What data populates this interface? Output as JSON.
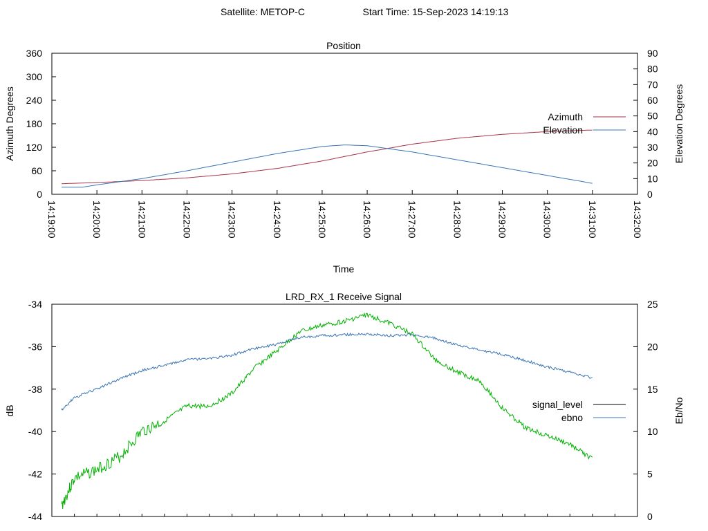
{
  "header": {
    "satellite": "Satellite: METOP-C",
    "start_time": "Start Time: 15-Sep-2023 14:19:13"
  },
  "colors": {
    "azimuth": "#a8324a",
    "elevation": "#3a74b4",
    "signal_level": "#00b000",
    "signal_legend": "#000000",
    "ebno": "#3a74b4"
  },
  "chart_data": [
    {
      "type": "line",
      "title": "Position",
      "xlabel": "Time",
      "ylabel": "Azimuth Degrees",
      "y2label": "Elevation Degrees",
      "ylim": [
        0,
        360
      ],
      "y2lim": [
        0,
        90
      ],
      "xlim": [
        "14:19:00",
        "14:32:00"
      ],
      "yticks": [
        0,
        60,
        120,
        180,
        240,
        300,
        360
      ],
      "y2ticks": [
        0,
        10,
        20,
        30,
        40,
        50,
        60,
        70,
        80,
        90
      ],
      "xticks": [
        "14:19:00",
        "14:20:00",
        "14:21:00",
        "14:22:00",
        "14:23:00",
        "14:24:00",
        "14:25:00",
        "14:26:00",
        "14:27:00",
        "14:28:00",
        "14:29:00",
        "14:30:00",
        "14:31:00",
        "14:32:00"
      ],
      "legend": "right",
      "series": [
        {
          "name": "Azimuth",
          "axis": "left",
          "x": [
            "14:19:13",
            "14:20:00",
            "14:21:00",
            "14:22:00",
            "14:23:00",
            "14:24:00",
            "14:25:00",
            "14:26:00",
            "14:27:00",
            "14:28:00",
            "14:29:00",
            "14:30:00",
            "14:31:00"
          ],
          "y": [
            27,
            30,
            35,
            42,
            52,
            66,
            85,
            108,
            128,
            143,
            153,
            160,
            164
          ]
        },
        {
          "name": "Elevation",
          "axis": "right",
          "x": [
            "14:19:13",
            "14:19:40",
            "14:20:00",
            "14:21:00",
            "14:22:00",
            "14:23:00",
            "14:24:00",
            "14:25:00",
            "14:25:30",
            "14:26:00",
            "14:27:00",
            "14:28:00",
            "14:29:00",
            "14:30:00",
            "14:31:00"
          ],
          "y": [
            4.5,
            4.5,
            6,
            10,
            15,
            20.5,
            26,
            30.5,
            31.5,
            31,
            27,
            22,
            17,
            12,
            7
          ]
        }
      ]
    },
    {
      "type": "line",
      "title": "LRD_RX_1 Receive Signal",
      "ylabel": "dB",
      "y2label": "Eb/No",
      "ylim": [
        -44,
        -34
      ],
      "y2lim": [
        0,
        25
      ],
      "xlim": [
        "14:19:00",
        "14:32:00"
      ],
      "yticks": [
        -44,
        -42,
        -40,
        -38,
        -36,
        -34
      ],
      "y2ticks": [
        0,
        5,
        10,
        15,
        20,
        25
      ],
      "legend": "right",
      "series": [
        {
          "name": "signal_level",
          "axis": "left",
          "x": [
            "14:19:13",
            "14:19:30",
            "14:20:00",
            "14:20:30",
            "14:21:00",
            "14:21:30",
            "14:22:00",
            "14:22:30",
            "14:23:00",
            "14:23:30",
            "14:24:00",
            "14:24:30",
            "14:25:00",
            "14:25:30",
            "14:26:00",
            "14:26:30",
            "14:27:00",
            "14:27:30",
            "14:28:00",
            "14:28:30",
            "14:29:00",
            "14:29:30",
            "14:30:00",
            "14:30:30",
            "14:31:00"
          ],
          "y": [
            -43.5,
            -42.2,
            -41.8,
            -41.2,
            -40.0,
            -39.5,
            -38.8,
            -38.8,
            -38.2,
            -37.0,
            -36.2,
            -35.3,
            -35.0,
            -34.8,
            -34.5,
            -34.9,
            -35.4,
            -36.6,
            -37.2,
            -37.6,
            -38.9,
            -39.8,
            -40.2,
            -40.6,
            -41.3
          ]
        },
        {
          "name": "ebno",
          "axis": "right",
          "x": [
            "14:19:13",
            "14:19:30",
            "14:20:00",
            "14:20:30",
            "14:21:00",
            "14:21:30",
            "14:22:00",
            "14:22:30",
            "14:23:00",
            "14:23:30",
            "14:24:00",
            "14:24:30",
            "14:25:00",
            "14:25:30",
            "14:26:00",
            "14:26:30",
            "14:27:00",
            "14:27:30",
            "14:28:00",
            "14:28:30",
            "14:29:00",
            "14:29:30",
            "14:30:00",
            "14:30:30",
            "14:31:00"
          ],
          "y": [
            12.5,
            14.0,
            15.0,
            16.2,
            17.2,
            17.8,
            18.5,
            18.6,
            19.0,
            19.8,
            20.3,
            21.1,
            21.3,
            21.4,
            21.5,
            21.3,
            21.4,
            21.0,
            20.2,
            19.6,
            19.1,
            18.4,
            17.6,
            17.0,
            16.3
          ]
        }
      ]
    }
  ]
}
